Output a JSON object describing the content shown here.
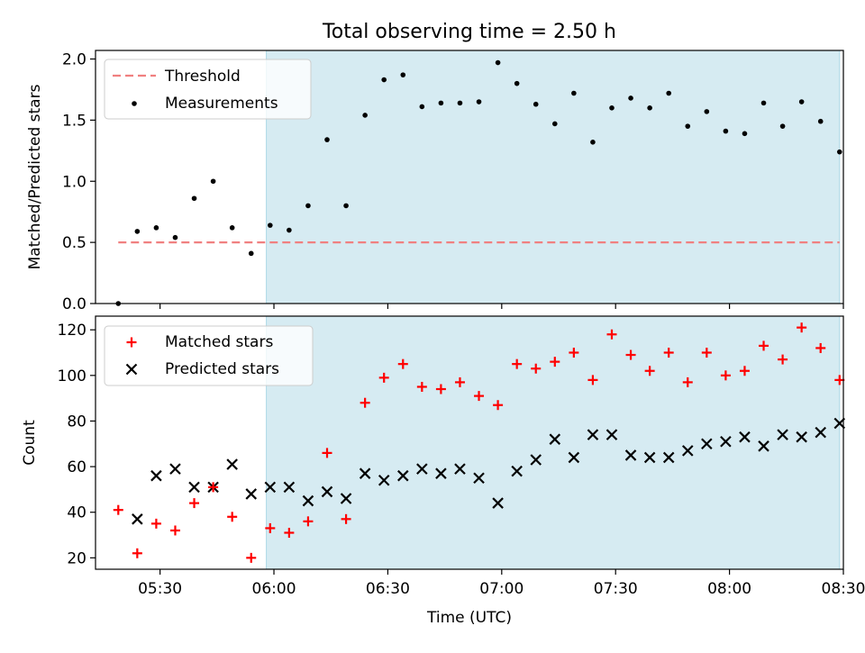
{
  "title": "Total observing time = 2.50 h",
  "colors": {
    "threshold": "#f08080",
    "measurement": "#000000",
    "matched": "#ff0000",
    "predicted": "#000000",
    "shade": "#add8e6"
  },
  "chart_data": [
    {
      "type": "scatter",
      "panel": "top",
      "ylabel": "Matched/Predicted stars",
      "xlabel": "",
      "ylim": [
        0,
        2.07
      ],
      "yticks": [
        "0.0",
        "0.5",
        "1.0",
        "1.5",
        "2.0"
      ],
      "shaded_interval": [
        "05:58",
        "08:29"
      ],
      "threshold": {
        "name": "Threshold",
        "value": 0.5,
        "x_range": [
          "05:19",
          "08:29"
        ]
      },
      "series": [
        {
          "name": "Measurements",
          "x": [
            "05:19",
            "05:24",
            "05:29",
            "05:34",
            "05:39",
            "05:44",
            "05:49",
            "05:54",
            "05:59",
            "06:04",
            "06:09",
            "06:14",
            "06:19",
            "06:24",
            "06:29",
            "06:34",
            "06:39",
            "06:44",
            "06:49",
            "06:54",
            "06:59",
            "07:04",
            "07:09",
            "07:14",
            "07:19",
            "07:24",
            "07:29",
            "07:34",
            "07:39",
            "07:44",
            "07:49",
            "07:54",
            "07:59",
            "08:04",
            "08:09",
            "08:14",
            "08:19",
            "08:24",
            "08:29"
          ],
          "values": [
            0.0,
            0.59,
            0.62,
            0.54,
            0.86,
            1.0,
            0.62,
            0.41,
            0.64,
            0.6,
            0.8,
            1.34,
            0.8,
            1.54,
            1.83,
            1.87,
            1.61,
            1.64,
            1.64,
            1.65,
            1.97,
            1.8,
            1.63,
            1.47,
            1.72,
            1.32,
            1.6,
            1.68,
            1.6,
            1.72,
            1.45,
            1.57,
            1.41,
            1.39,
            1.64,
            1.45,
            1.65,
            1.49,
            1.24
          ]
        }
      ]
    },
    {
      "type": "scatter",
      "panel": "bottom",
      "ylabel": "Count",
      "xlabel": "Time (UTC)",
      "ylim": [
        15,
        126
      ],
      "yticks": [
        "20",
        "40",
        "60",
        "80",
        "100",
        "120"
      ],
      "xticks": [
        "05:30",
        "06:00",
        "06:30",
        "07:00",
        "07:30",
        "08:00",
        "08:30"
      ],
      "shaded_interval": [
        "05:58",
        "08:29"
      ],
      "series": [
        {
          "name": "Matched stars",
          "marker": "plus",
          "x": [
            "05:19",
            "05:24",
            "05:29",
            "05:34",
            "05:39",
            "05:44",
            "05:49",
            "05:54",
            "05:59",
            "06:04",
            "06:09",
            "06:14",
            "06:19",
            "06:24",
            "06:29",
            "06:34",
            "06:39",
            "06:44",
            "06:49",
            "06:54",
            "06:59",
            "07:04",
            "07:09",
            "07:14",
            "07:19",
            "07:24",
            "07:29",
            "07:34",
            "07:39",
            "07:44",
            "07:49",
            "07:54",
            "07:59",
            "08:04",
            "08:09",
            "08:14",
            "08:19",
            "08:24",
            "08:29"
          ],
          "values": [
            41,
            22,
            35,
            32,
            44,
            51,
            38,
            20,
            33,
            31,
            36,
            66,
            37,
            88,
            99,
            105,
            95,
            94,
            97,
            91,
            87,
            105,
            103,
            106,
            110,
            98,
            118,
            109,
            102,
            110,
            97,
            110,
            100,
            102,
            113,
            107,
            121,
            112,
            98
          ]
        },
        {
          "name": "Predicted stars",
          "marker": "x",
          "x": [
            "05:24",
            "05:29",
            "05:34",
            "05:39",
            "05:44",
            "05:49",
            "05:54",
            "05:59",
            "06:04",
            "06:09",
            "06:14",
            "06:19",
            "06:24",
            "06:29",
            "06:34",
            "06:39",
            "06:44",
            "06:49",
            "06:54",
            "06:59",
            "07:04",
            "07:09",
            "07:14",
            "07:19",
            "07:24",
            "07:29",
            "07:34",
            "07:39",
            "07:44",
            "07:49",
            "07:54",
            "07:59",
            "08:04",
            "08:09",
            "08:14",
            "08:19",
            "08:24",
            "08:29"
          ],
          "values": [
            37,
            56,
            59,
            51,
            51,
            61,
            48,
            51,
            51,
            45,
            49,
            46,
            57,
            54,
            56,
            59,
            57,
            59,
            55,
            44,
            58,
            63,
            72,
            64,
            74,
            74,
            65,
            64,
            64,
            67,
            70,
            71,
            73,
            69,
            74,
            73,
            75,
            79
          ]
        }
      ]
    }
  ]
}
